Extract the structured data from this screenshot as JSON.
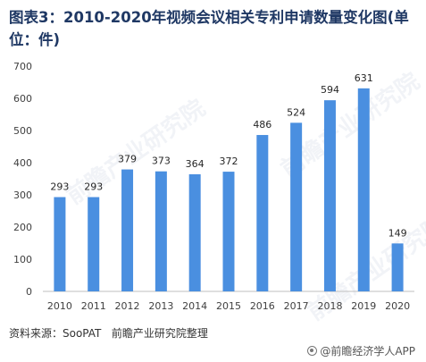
{
  "title": "图表3：2010-2020年视频会议相关专利申请数量变化图(单位：件)",
  "source": "资料来源：SooPAT   前瞻产业研究院整理",
  "brand": "@前瞻经济学人APP",
  "background_watermark": "前瞻产业研究院",
  "colors": {
    "bar": "#4a8fe0",
    "title": "#1f3864",
    "axis": "#bfbfbf"
  },
  "chart_data": {
    "type": "bar",
    "title": "图表3：2010-2020年视频会议相关专利申请数量变化图(单位：件)",
    "categories": [
      "2010",
      "2011",
      "2012",
      "2013",
      "2014",
      "2015",
      "2016",
      "2017",
      "2018",
      "2019",
      "2020"
    ],
    "values": [
      293,
      293,
      379,
      373,
      364,
      372,
      486,
      524,
      594,
      631,
      149
    ],
    "ylim": [
      0,
      700
    ],
    "yticks": [
      0,
      100,
      200,
      300,
      400,
      500,
      600,
      700
    ],
    "xlabel": "",
    "ylabel": "",
    "grid": false,
    "legend": "none"
  }
}
